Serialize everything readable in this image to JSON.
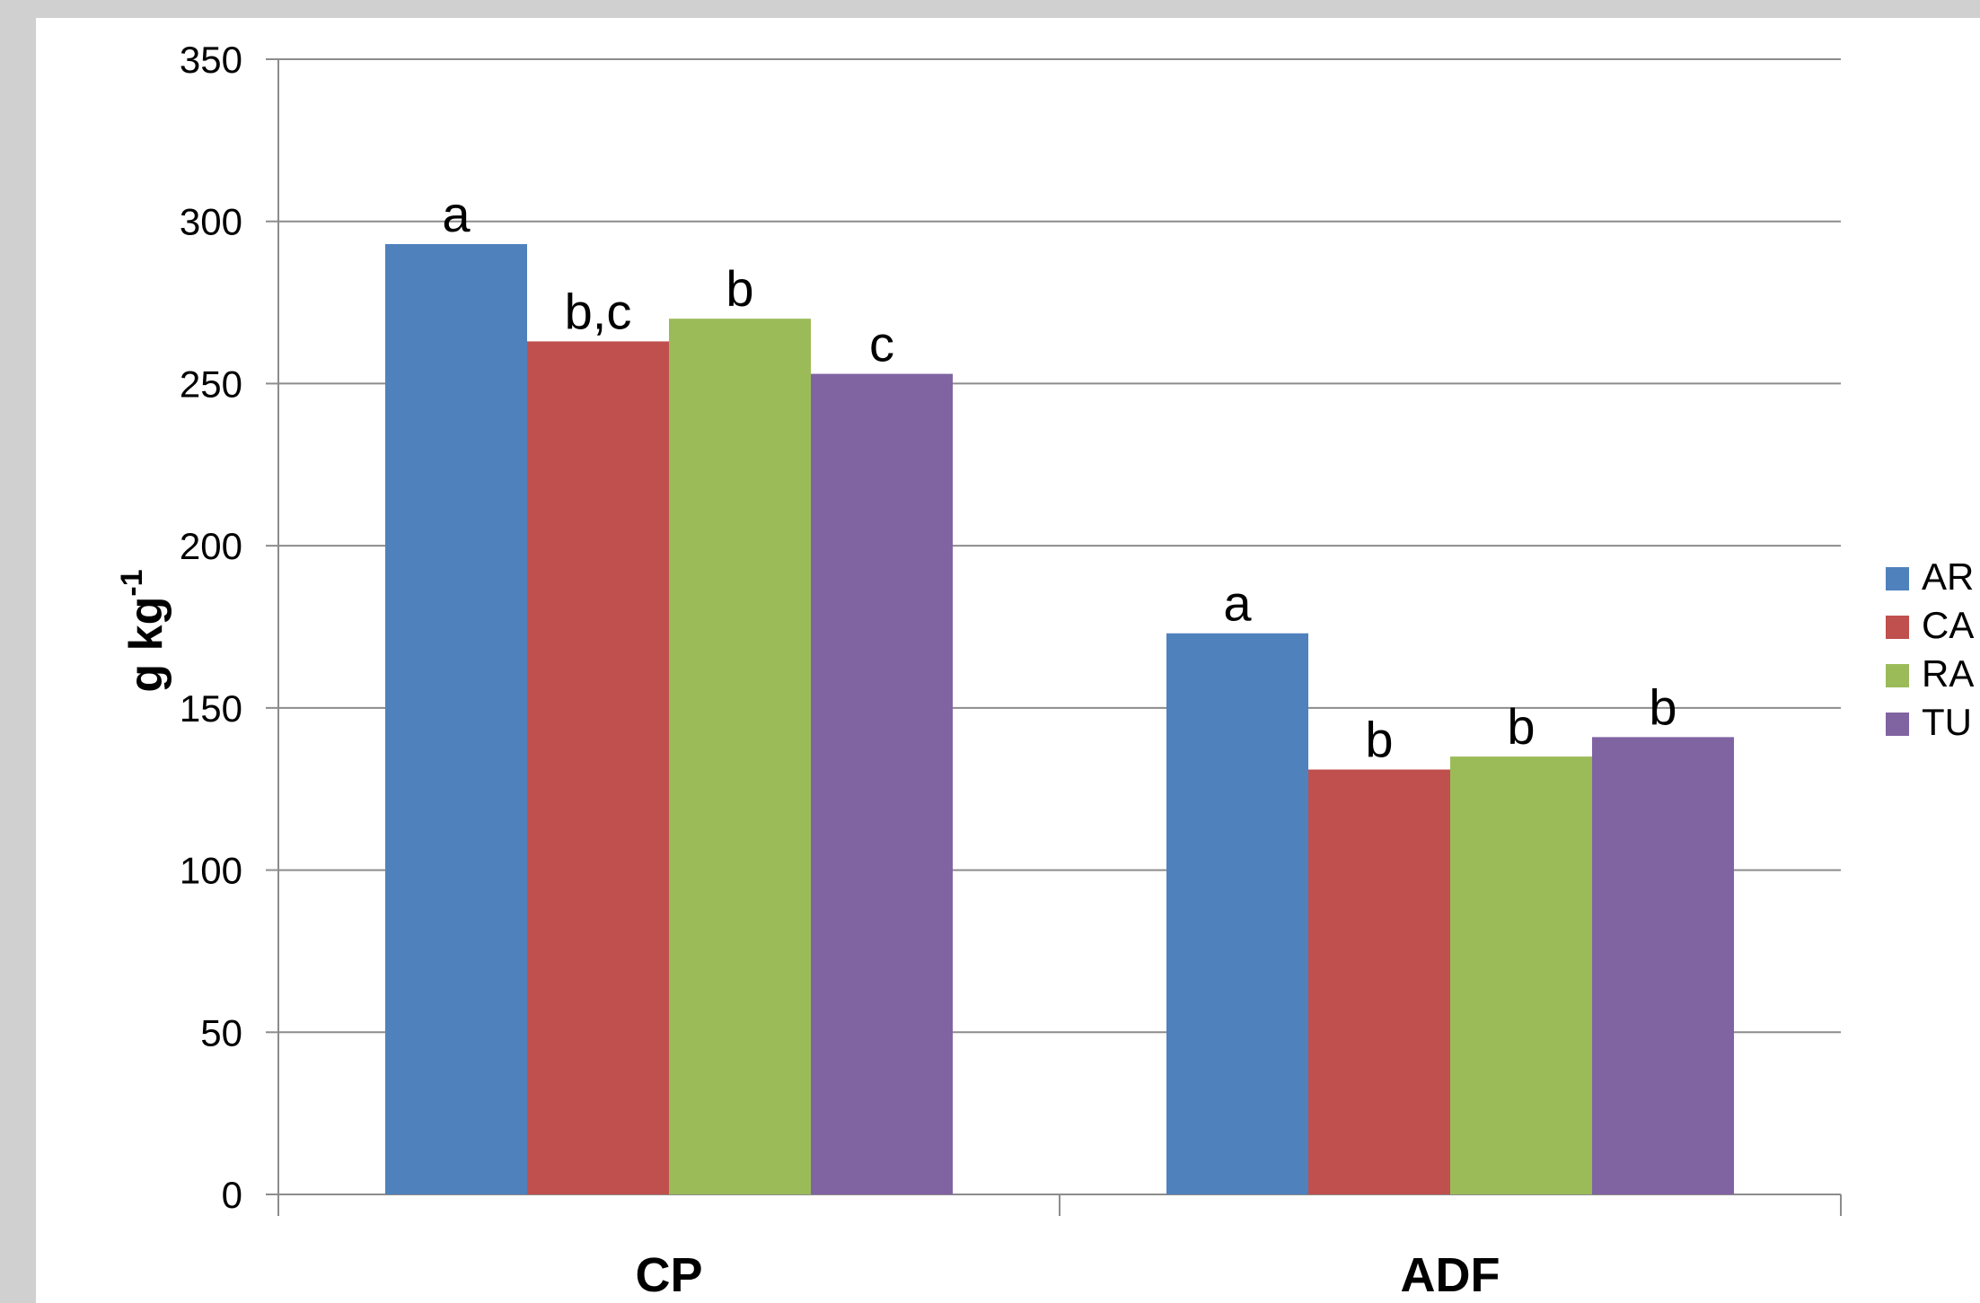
{
  "chart_data": {
    "type": "bar",
    "title": "",
    "ylabel": "g kg",
    "ylabel_superscript": "-1",
    "xlabel": "",
    "categories": [
      "CP",
      "ADF"
    ],
    "ylim": [
      0,
      350
    ],
    "yticks": [
      0,
      50,
      100,
      150,
      200,
      250,
      300,
      350
    ],
    "grid": true,
    "legend_position": "right",
    "series": [
      {
        "name": "AR",
        "color": "#4f81bd",
        "values": [
          293,
          173
        ],
        "labels": [
          "a",
          "a"
        ]
      },
      {
        "name": "CA",
        "color": "#c0504d",
        "values": [
          263,
          131
        ],
        "labels": [
          "b,c",
          "b"
        ]
      },
      {
        "name": "RA",
        "color": "#9bbb59",
        "values": [
          270,
          135
        ],
        "labels": [
          "b",
          "b"
        ]
      },
      {
        "name": "TU",
        "color": "#8064a2",
        "values": [
          253,
          141
        ],
        "labels": [
          "c",
          "b"
        ]
      }
    ]
  }
}
